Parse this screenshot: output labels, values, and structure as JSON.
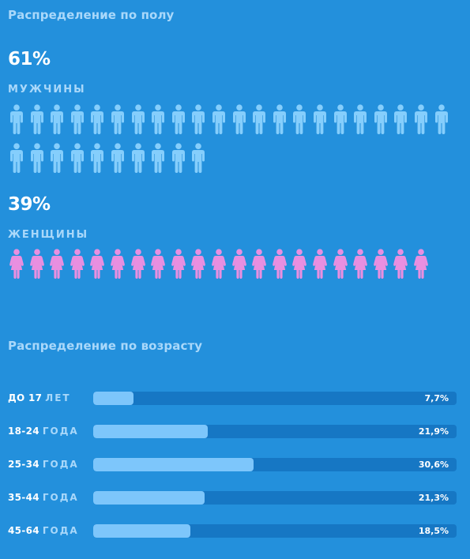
{
  "colors": {
    "background": "#2390dc",
    "male_icon": "#85cefc",
    "female_icon": "#e98fe0",
    "bar_track": "#1677c4",
    "bar_fill": "#7dc6fb",
    "title": "#a9d8fa"
  },
  "icons": {
    "male": "male-person-icon",
    "female": "female-person-icon"
  },
  "gender": {
    "title": "Распределение по полу",
    "male": {
      "percent": "61%",
      "label": "МУЖЧИНЫ",
      "icon_count": 32
    },
    "female": {
      "percent": "39%",
      "label": "ЖЕНЩИНЫ",
      "icon_count": 21
    }
  },
  "age": {
    "title": "Распределение по возрасту"
  },
  "chart_data": [
    {
      "type": "bar",
      "title": "Распределение по полу",
      "categories": [
        "МУЖЧИНЫ",
        "ЖЕНЩИНЫ"
      ],
      "values": [
        61,
        39
      ],
      "value_labels": [
        "61%",
        "39%"
      ],
      "unit": "%"
    },
    {
      "type": "bar",
      "orientation": "horizontal",
      "title": "Распределение по возрасту",
      "xlim": [
        0,
        100
      ],
      "unit": "%",
      "rows": [
        {
          "prefix": "ДО 17",
          "unit": "ЛЕТ",
          "value": 7.7,
          "label": "7,7%"
        },
        {
          "prefix": "18-24",
          "unit": "ГОДА",
          "value": 21.9,
          "label": "21,9%"
        },
        {
          "prefix": "25-34",
          "unit": "ГОДА",
          "value": 30.6,
          "label": "30,6%"
        },
        {
          "prefix": "35-44",
          "unit": "ГОДА",
          "value": 21.3,
          "label": "21,3%"
        },
        {
          "prefix": "45-64",
          "unit": "ГОДА",
          "value": 18.5,
          "label": "18,5%"
        }
      ]
    }
  ]
}
